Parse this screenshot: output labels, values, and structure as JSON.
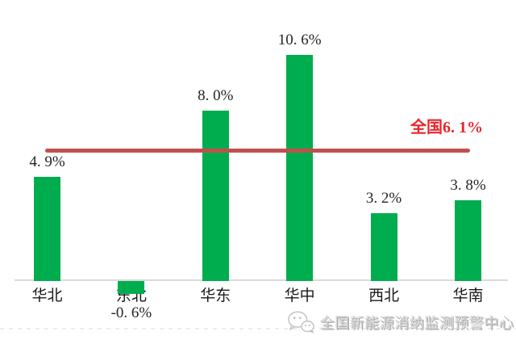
{
  "chart_data": {
    "type": "bar",
    "categories": [
      "华北",
      "东北",
      "华东",
      "华中",
      "西北",
      "华南"
    ],
    "values": [
      4.9,
      -0.6,
      8.0,
      10.6,
      3.2,
      3.8
    ],
    "value_labels": [
      "4. 9%",
      "-0. 6%",
      "8. 0%",
      "10. 6%",
      "3. 2%",
      "3. 8%"
    ],
    "unit": "%",
    "bar_color": "#00ad4e",
    "title": "",
    "xlabel": "",
    "ylabel": "",
    "ylim": [
      -1,
      12
    ],
    "grid": false,
    "legend": false,
    "axis_color": "#dadada",
    "label_color": "#262626",
    "reference_line": {
      "value": 6.1,
      "label": "全国6. 1%",
      "line_color": "#c0504d",
      "label_color": "#e8262a"
    }
  },
  "watermark": {
    "icon": "wechat-icon",
    "text": "全国新能源消纳监测预警中心",
    "color": "#c4c4c4"
  }
}
